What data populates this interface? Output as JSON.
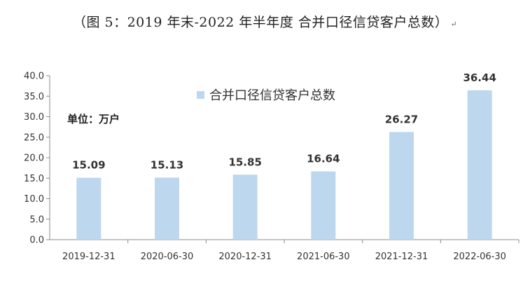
{
  "caption": {
    "text": "（图 5：2019 年末-2022 年半年度 合并口径信贷客户总数）",
    "return_mark": "↵"
  },
  "chart_data": {
    "type": "bar",
    "title": "",
    "xlabel": "",
    "ylabel": "",
    "unit_label": "单位：万户",
    "ylim": [
      0,
      40
    ],
    "yticks": [
      "0.0",
      "5.0",
      "10.0",
      "15.0",
      "20.0",
      "25.0",
      "30.0",
      "35.0",
      "40.0"
    ],
    "categories": [
      "2019-12-31",
      "2020-06-30",
      "2020-12-31",
      "2021-06-30",
      "2021-12-31",
      "2022-06-30"
    ],
    "series": [
      {
        "name": "合并口径信贷客户总数",
        "color": "#bdd7ee",
        "values": [
          15.09,
          15.13,
          15.85,
          16.64,
          26.27,
          36.44
        ],
        "value_labels": [
          "15.09",
          "15.13",
          "15.85",
          "16.64",
          "26.27",
          "36.44"
        ]
      }
    ],
    "legend_position": "top-center",
    "grid": false
  }
}
